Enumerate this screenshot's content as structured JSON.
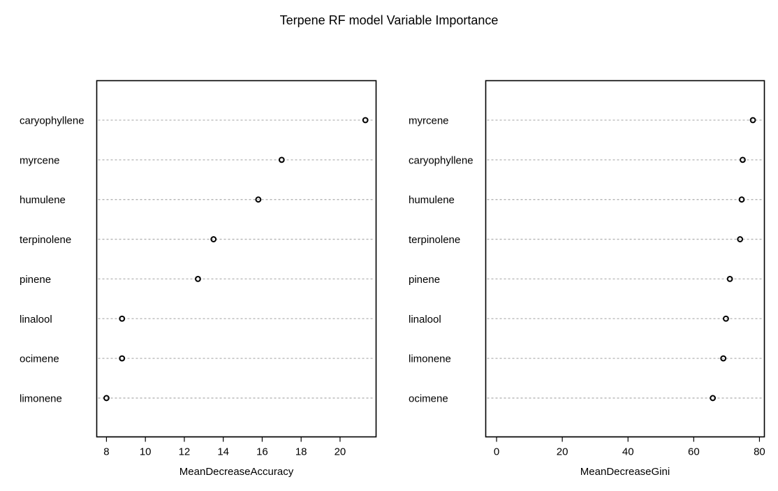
{
  "title": "Terpene RF model Variable Importance",
  "chart_data": [
    {
      "type": "dotchart",
      "xlabel": "MeanDecreaseAccuracy",
      "xlim": [
        7.5,
        21.85
      ],
      "xticks": [
        8,
        10,
        12,
        14,
        16,
        18,
        20
      ],
      "grid": "dotted-horizontal",
      "categories": [
        "caryophyllene",
        "myrcene",
        "humulene",
        "terpinolene",
        "pinene",
        "linalool",
        "ocimene",
        "limonene"
      ],
      "values": [
        21.3,
        17.0,
        15.8,
        13.5,
        12.7,
        8.8,
        8.8,
        8.0
      ]
    },
    {
      "type": "dotchart",
      "xlabel": "MeanDecreaseGini",
      "xlim": [
        -3.3,
        81.5
      ],
      "xticks": [
        0,
        20,
        40,
        60,
        80
      ],
      "grid": "dotted-horizontal",
      "categories": [
        "myrcene",
        "caryophyllene",
        "humulene",
        "terpinolene",
        "pinene",
        "linalool",
        "limonene",
        "ocimene"
      ],
      "values": [
        78.0,
        74.9,
        74.6,
        74.1,
        71.0,
        69.8,
        69.0,
        65.8
      ]
    }
  ]
}
